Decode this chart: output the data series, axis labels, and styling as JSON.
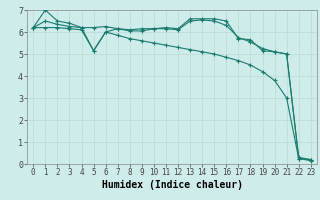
{
  "xlabel": "Humidex (Indice chaleur)",
  "background_color": "#ceecea",
  "grid_color": "#b8dbd8",
  "line_color": "#1a7a6e",
  "xlim": [
    -0.5,
    23.5
  ],
  "ylim": [
    0,
    7
  ],
  "xticks": [
    0,
    1,
    2,
    3,
    4,
    5,
    6,
    7,
    8,
    9,
    10,
    11,
    12,
    13,
    14,
    15,
    16,
    17,
    18,
    19,
    20,
    21,
    22,
    23
  ],
  "yticks": [
    0,
    1,
    2,
    3,
    4,
    5,
    6,
    7
  ],
  "series1_x": [
    0,
    1,
    2,
    3,
    4,
    5,
    6,
    7,
    8,
    9,
    10,
    11,
    12,
    13,
    14,
    15,
    16,
    17,
    18,
    19,
    20,
    21,
    22,
    23
  ],
  "series1_y": [
    6.2,
    7.0,
    6.5,
    6.4,
    6.2,
    5.15,
    6.0,
    6.15,
    6.1,
    6.15,
    6.15,
    6.2,
    6.15,
    6.6,
    6.6,
    6.6,
    6.5,
    5.7,
    5.65,
    5.15,
    5.1,
    5.0,
    0.25,
    0.2
  ],
  "series2_x": [
    0,
    1,
    2,
    3,
    4,
    5,
    6,
    7,
    8,
    9,
    10,
    11,
    12,
    13,
    14,
    15,
    16,
    17,
    18,
    19,
    20,
    21,
    22,
    23
  ],
  "series2_y": [
    6.2,
    6.5,
    6.35,
    6.25,
    6.2,
    6.2,
    6.25,
    6.15,
    6.05,
    6.05,
    6.15,
    6.15,
    6.1,
    6.5,
    6.55,
    6.5,
    6.3,
    5.75,
    5.55,
    5.25,
    5.1,
    5.0,
    0.3,
    0.2
  ],
  "series3_x": [
    0,
    1,
    2,
    3,
    4,
    5,
    6,
    7,
    8,
    9,
    10,
    11,
    12,
    13,
    14,
    15,
    16,
    17,
    18,
    19,
    20,
    21,
    22,
    23
  ],
  "series3_y": [
    6.2,
    6.2,
    6.2,
    6.15,
    6.1,
    5.15,
    6.0,
    5.85,
    5.7,
    5.6,
    5.5,
    5.4,
    5.3,
    5.2,
    5.1,
    5.0,
    4.85,
    4.7,
    4.5,
    4.2,
    3.8,
    3.0,
    0.25,
    0.15
  ],
  "xlabel_fontsize": 7,
  "tick_fontsize": 5.5,
  "ytick_fontsize": 6
}
